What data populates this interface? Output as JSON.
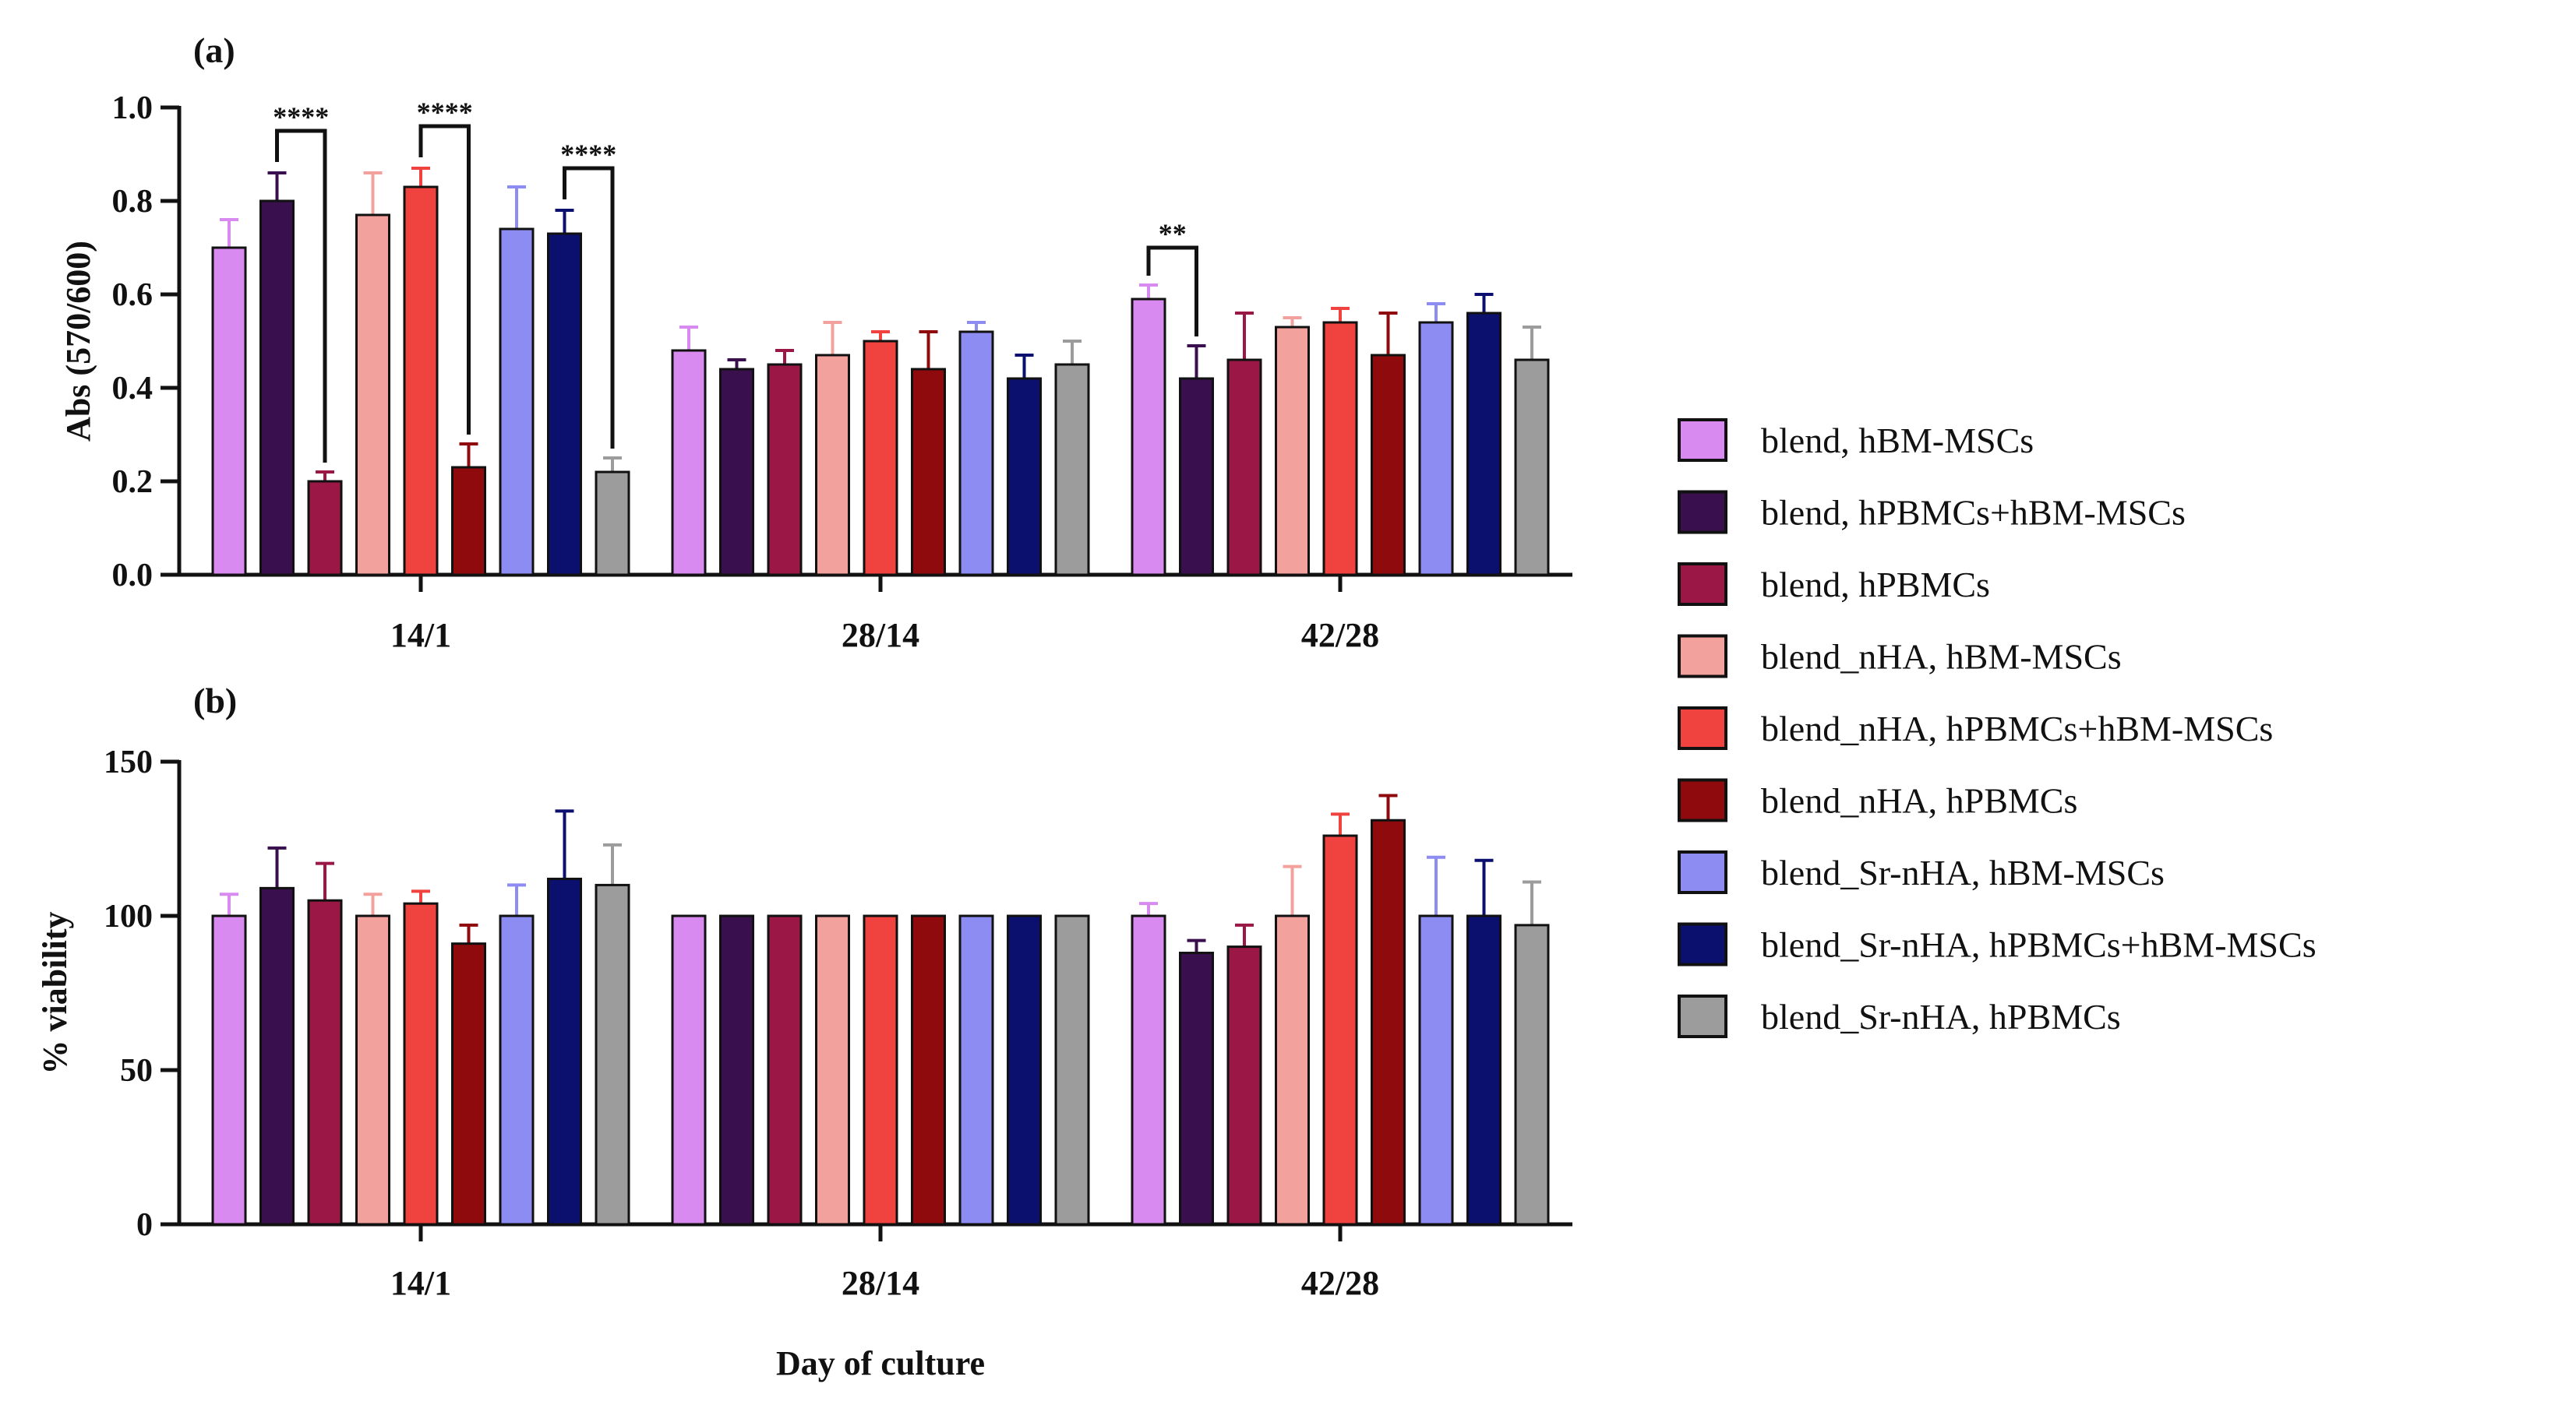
{
  "colors": {
    "blend, hBM-MSCs": "#D98AF0",
    "blend, hPBMCs+hBM-MSCs": "#3A0F4E",
    "blend, hPBMCs": "#9A1746",
    "blend_nHA, hBM-MSCs": "#F2A19C",
    "blend_nHA, hPBMCs+hBM-MSCs": "#F0423E",
    "blend_nHA, hPBMCs": "#8E0A0C",
    "blend_Sr-nHA, hBM-MSCs": "#8C8CF2",
    "blend_Sr-nHA, hPBMCs+hBM-MSCs": "#0B0F6E",
    "blend_Sr-nHA, hPBMCs": "#9C9C9C"
  },
  "legend": {
    "entries": [
      "blend, hBM-MSCs",
      "blend, hPBMCs+hBM-MSCs",
      "blend, hPBMCs",
      "blend_nHA, hBM-MSCs",
      "blend_nHA, hPBMCs+hBM-MSCs",
      "blend_nHA, hPBMCs",
      "blend_Sr-nHA, hBM-MSCs",
      "blend_Sr-nHA, hPBMCs+hBM-MSCs",
      "blend_Sr-nHA, hPBMCs"
    ]
  },
  "chart_data": [
    {
      "type": "bar",
      "panel": "(a)",
      "ylabel": "Abs (570/600)",
      "xlabel": "",
      "ylim": [
        0,
        1.0
      ],
      "yticks": [
        "0.0",
        "0.2",
        "0.4",
        "0.6",
        "0.8",
        "1.0"
      ],
      "categories": [
        "14/1",
        "28/14",
        "42/28"
      ],
      "series": [
        {
          "name": "blend, hBM-MSCs",
          "values": [
            0.7,
            0.48,
            0.59
          ],
          "errors": [
            0.06,
            0.05,
            0.03
          ]
        },
        {
          "name": "blend, hPBMCs+hBM-MSCs",
          "values": [
            0.8,
            0.44,
            0.42
          ],
          "errors": [
            0.06,
            0.02,
            0.07
          ]
        },
        {
          "name": "blend, hPBMCs",
          "values": [
            0.2,
            0.45,
            0.46
          ],
          "errors": [
            0.02,
            0.03,
            0.1
          ]
        },
        {
          "name": "blend_nHA, hBM-MSCs",
          "values": [
            0.77,
            0.47,
            0.53
          ],
          "errors": [
            0.09,
            0.07,
            0.02
          ]
        },
        {
          "name": "blend_nHA, hPBMCs+hBM-MSCs",
          "values": [
            0.83,
            0.5,
            0.54
          ],
          "errors": [
            0.04,
            0.02,
            0.03
          ]
        },
        {
          "name": "blend_nHA, hPBMCs",
          "values": [
            0.23,
            0.44,
            0.47
          ],
          "errors": [
            0.05,
            0.08,
            0.09
          ]
        },
        {
          "name": "blend_Sr-nHA, hBM-MSCs",
          "values": [
            0.74,
            0.52,
            0.54
          ],
          "errors": [
            0.09,
            0.02,
            0.04
          ]
        },
        {
          "name": "blend_Sr-nHA, hPBMCs+hBM-MSCs",
          "values": [
            0.73,
            0.42,
            0.56
          ],
          "errors": [
            0.05,
            0.05,
            0.04
          ]
        },
        {
          "name": "blend_Sr-nHA, hPBMCs",
          "values": [
            0.22,
            0.45,
            0.46
          ],
          "errors": [
            0.03,
            0.05,
            0.07
          ]
        }
      ],
      "significance": [
        {
          "category": "14/1",
          "from": 1,
          "to": 2,
          "label": "****",
          "y": 0.95
        },
        {
          "category": "14/1",
          "from": 4,
          "to": 5,
          "label": "****",
          "y": 0.96
        },
        {
          "category": "14/1",
          "from": 7,
          "to": 8,
          "label": "****",
          "y": 0.87
        },
        {
          "category": "42/28",
          "from": 0,
          "to": 1,
          "label": "**",
          "y": 0.7
        }
      ]
    },
    {
      "type": "bar",
      "panel": "(b)",
      "ylabel": "% viability",
      "xlabel": "Day of culture",
      "ylim": [
        0,
        150
      ],
      "yticks": [
        "0",
        "50",
        "100",
        "150"
      ],
      "categories": [
        "14/1",
        "28/14",
        "42/28"
      ],
      "series": [
        {
          "name": "blend, hBM-MSCs",
          "values": [
            100,
            100,
            100
          ],
          "errors": [
            7,
            0,
            4
          ]
        },
        {
          "name": "blend, hPBMCs+hBM-MSCs",
          "values": [
            109,
            100,
            88
          ],
          "errors": [
            13,
            0,
            4
          ]
        },
        {
          "name": "blend, hPBMCs",
          "values": [
            105,
            100,
            90
          ],
          "errors": [
            12,
            0,
            7
          ]
        },
        {
          "name": "blend_nHA, hBM-MSCs",
          "values": [
            100,
            100,
            100
          ],
          "errors": [
            7,
            0,
            16
          ]
        },
        {
          "name": "blend_nHA, hPBMCs+hBM-MSCs",
          "values": [
            104,
            100,
            126
          ],
          "errors": [
            4,
            0,
            7
          ]
        },
        {
          "name": "blend_nHA, hPBMCs",
          "values": [
            91,
            100,
            131
          ],
          "errors": [
            6,
            0,
            8
          ]
        },
        {
          "name": "blend_Sr-nHA, hBM-MSCs",
          "values": [
            100,
            100,
            100
          ],
          "errors": [
            10,
            0,
            19
          ]
        },
        {
          "name": "blend_Sr-nHA, hPBMCs+hBM-MSCs",
          "values": [
            112,
            100,
            100
          ],
          "errors": [
            22,
            0,
            18
          ]
        },
        {
          "name": "blend_Sr-nHA, hPBMCs",
          "values": [
            110,
            100,
            97
          ],
          "errors": [
            13,
            0,
            14
          ]
        }
      ],
      "significance": []
    }
  ]
}
